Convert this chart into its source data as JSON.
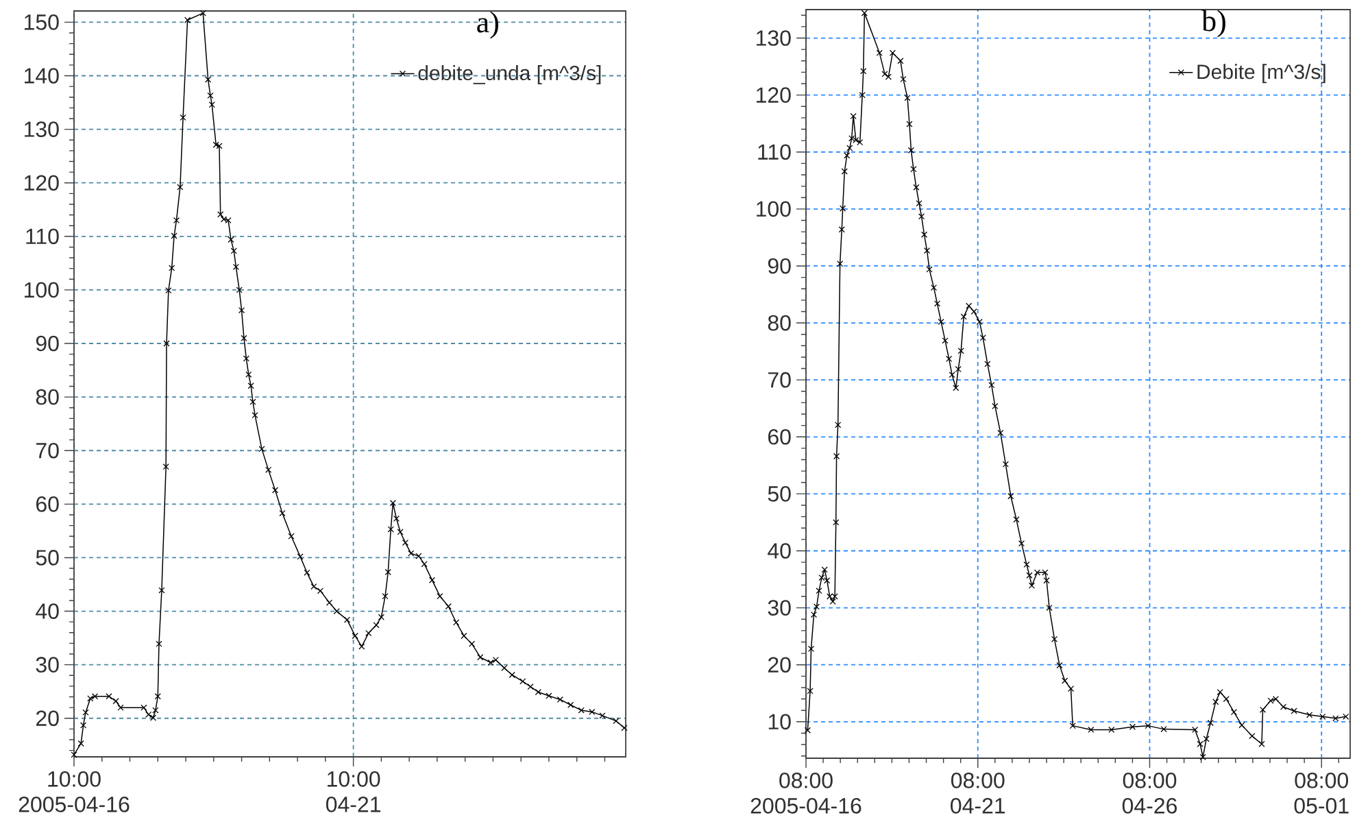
{
  "chart_data": [
    {
      "type": "line",
      "title": "a)",
      "x": [
        "2005-04-16T10:00",
        "2005-04-16T13:00",
        "2005-04-16T14:00",
        "2005-04-16T15:00",
        "2005-04-16T17:00",
        "2005-04-16T19:00",
        "2005-04-17T01:00",
        "2005-04-17T04:00",
        "2005-04-17T06:00",
        "2005-04-17T16:00",
        "2005-04-17T18:00",
        "2005-04-17T20:00",
        "2005-04-17T21:00",
        "2005-04-17T22:00",
        "2005-04-17T22:30",
        "2005-04-17T23:40",
        "2005-04-18T01:30",
        "2005-04-18T01:45",
        "2005-04-18T02:35",
        "2005-04-18T04:00",
        "2005-04-18T05:00",
        "2005-04-18T06:00",
        "2005-04-18T07:35",
        "2005-04-18T08:50",
        "2005-04-18T10:45",
        "2005-04-18T17:25",
        "2005-04-18T19:35",
        "2005-04-18T20:35",
        "2005-04-18T21:15",
        "2005-04-18T23:00",
        "2005-04-19T00:25",
        "2005-04-19T00:55",
        "2005-04-19T02:20",
        "2005-04-19T04:15",
        "2005-04-19T05:25",
        "2005-04-19T06:40",
        "2005-04-19T07:35",
        "2005-04-19T09:00",
        "2005-04-19T10:00",
        "2005-04-19T11:00",
        "2005-04-19T12:00",
        "2005-04-19T13:00",
        "2005-04-19T14:00",
        "2005-04-19T14:50",
        "2005-04-19T15:45",
        "2005-04-19T18:40",
        "2005-04-19T21:30",
        "2005-04-20T00:25",
        "2005-04-20T03:30",
        "2005-04-20T07:20",
        "2005-04-20T11:10",
        "2005-04-20T14:05",
        "2005-04-20T17:00",
        "2005-04-20T19:50",
        "2005-04-20T23:40",
        "2005-04-21T02:50",
        "2005-04-21T07:20",
        "2005-04-21T10:45",
        "2005-04-21T13:35",
        "2005-04-21T16:30",
        "2005-04-21T19:50",
        "2005-04-21T22:00",
        "2005-04-21T23:40",
        "2005-04-22T00:55",
        "2005-04-22T02:05",
        "2005-04-22T03:00",
        "2005-04-22T04:30",
        "2005-04-22T06:10",
        "2005-04-22T08:20",
        "2005-04-22T10:45",
        "2005-04-22T14:05",
        "2005-04-22T16:30",
        "2005-04-22T19:50",
        "2005-04-22T23:10",
        "2005-04-23T02:50",
        "2005-04-23T06:10",
        "2005-04-23T09:30",
        "2005-04-23T12:55",
        "2005-04-23T16:30",
        "2005-04-23T21:00",
        "2005-04-23T23:10",
        "2005-04-24T02:50",
        "2005-04-24T06:10",
        "2005-04-24T10:45",
        "2005-04-24T14:05",
        "2005-04-24T17:25",
        "2005-04-24T22:00",
        "2005-04-25T02:50",
        "2005-04-25T07:20",
        "2005-04-25T11:55",
        "2005-04-25T16:30",
        "2005-04-25T21:00",
        "2005-04-26T02:50",
        "2005-04-26T06:25"
      ],
      "series": [
        {
          "name": "debite_unda [m^3/s]",
          "color": "#000000",
          "values": [
            13.2,
            15.3,
            18.7,
            21.1,
            23.7,
            24.1,
            24.1,
            23.2,
            22.0,
            22.0,
            20.7,
            20.1,
            21.5,
            24.1,
            33.9,
            43.9,
            67.0,
            90.0,
            99.9,
            104.1,
            110.1,
            113.0,
            119.2,
            132.2,
            150.4,
            151.7,
            139.3,
            136.3,
            134.6,
            127.1,
            126.9,
            114.1,
            113.2,
            113.0,
            109.4,
            107.3,
            104.3,
            100.0,
            96.2,
            91.0,
            87.2,
            84.2,
            82.1,
            79.1,
            76.6,
            70.3,
            66.4,
            62.6,
            58.3,
            54.0,
            50.2,
            47.2,
            44.6,
            43.8,
            41.6,
            40.0,
            38.4,
            35.4,
            33.4,
            35.9,
            37.4,
            38.9,
            42.8,
            47.3,
            55.3,
            60.2,
            57.3,
            54.8,
            52.8,
            50.8,
            50.3,
            48.8,
            45.8,
            42.8,
            40.9,
            37.9,
            35.4,
            33.9,
            31.4,
            30.4,
            30.9,
            29.4,
            28.1,
            26.9,
            25.9,
            24.9,
            24.2,
            23.5,
            22.5,
            21.5,
            21.2,
            20.5,
            19.5,
            18.2
          ]
        }
      ],
      "xlim": [
        "2005-04-16T10:00",
        "2005-04-26T07:00"
      ],
      "ylim": [
        12.8,
        152.1
      ],
      "xticks": [
        {
          "value": "2005-04-16T10:00",
          "label": "10:00 2005-04-16"
        },
        {
          "value": "2005-04-16T22:00",
          "label": null
        },
        {
          "value": "2005-04-17T10:00",
          "label": null
        },
        {
          "value": "2005-04-17T22:00",
          "label": null
        },
        {
          "value": "2005-04-18T10:00",
          "label": null
        },
        {
          "value": "2005-04-18T22:00",
          "label": null
        },
        {
          "value": "2005-04-19T10:00",
          "label": null
        },
        {
          "value": "2005-04-19T22:00",
          "label": null
        },
        {
          "value": "2005-04-20T10:00",
          "label": null
        },
        {
          "value": "2005-04-20T22:00",
          "label": null
        },
        {
          "value": "2005-04-21T10:00",
          "label": "10:00 04-21"
        },
        {
          "value": "2005-04-21T22:00",
          "label": null
        },
        {
          "value": "2005-04-22T10:00",
          "label": null
        },
        {
          "value": "2005-04-22T22:00",
          "label": null
        },
        {
          "value": "2005-04-23T10:00",
          "label": null
        },
        {
          "value": "2005-04-23T22:00",
          "label": null
        },
        {
          "value": "2005-04-24T10:00",
          "label": null
        },
        {
          "value": "2005-04-24T22:00",
          "label": null
        },
        {
          "value": "2005-04-25T10:00",
          "label": null
        },
        {
          "value": "2005-04-25T22:00",
          "label": null
        }
      ],
      "yticks": [
        {
          "value": 14,
          "label": null
        },
        {
          "value": 16,
          "label": null
        },
        {
          "value": 18,
          "label": null
        },
        20,
        {
          "value": 22,
          "label": null
        },
        {
          "value": 24,
          "label": null
        },
        {
          "value": 26,
          "label": null
        },
        {
          "value": 28,
          "label": null
        },
        30,
        {
          "value": 32,
          "label": null
        },
        {
          "value": 34,
          "label": null
        },
        {
          "value": 36,
          "label": null
        },
        {
          "value": 38,
          "label": null
        },
        40,
        {
          "value": 42,
          "label": null
        },
        {
          "value": 44,
          "label": null
        },
        {
          "value": 46,
          "label": null
        },
        {
          "value": 48,
          "label": null
        },
        50,
        {
          "value": 52,
          "label": null
        },
        {
          "value": 54,
          "label": null
        },
        {
          "value": 56,
          "label": null
        },
        {
          "value": 58,
          "label": null
        },
        60,
        {
          "value": 62,
          "label": null
        },
        {
          "value": 64,
          "label": null
        },
        {
          "value": 66,
          "label": null
        },
        {
          "value": 68,
          "label": null
        },
        70,
        {
          "value": 72,
          "label": null
        },
        {
          "value": 74,
          "label": null
        },
        {
          "value": 76,
          "label": null
        },
        {
          "value": 78,
          "label": null
        },
        80,
        {
          "value": 82,
          "label": null
        },
        {
          "value": 84,
          "label": null
        },
        {
          "value": 86,
          "label": null
        },
        {
          "value": 88,
          "label": null
        },
        90,
        {
          "value": 92,
          "label": null
        },
        {
          "value": 94,
          "label": null
        },
        {
          "value": 96,
          "label": null
        },
        {
          "value": 98,
          "label": null
        },
        100,
        {
          "value": 102,
          "label": null
        },
        {
          "value": 104,
          "label": null
        },
        {
          "value": 106,
          "label": null
        },
        {
          "value": 108,
          "label": null
        },
        110,
        {
          "value": 112,
          "label": null
        },
        {
          "value": 114,
          "label": null
        },
        {
          "value": 116,
          "label": null
        },
        {
          "value": 118,
          "label": null
        },
        120,
        {
          "value": 122,
          "label": null
        },
        {
          "value": 124,
          "label": null
        },
        {
          "value": 126,
          "label": null
        },
        {
          "value": 128,
          "label": null
        },
        130,
        {
          "value": 132,
          "label": null
        },
        {
          "value": 134,
          "label": null
        },
        {
          "value": 136,
          "label": null
        },
        {
          "value": 138,
          "label": null
        },
        140,
        {
          "value": 142,
          "label": null
        },
        {
          "value": 144,
          "label": null
        },
        {
          "value": 146,
          "label": null
        },
        {
          "value": 148,
          "label": null
        },
        150
      ],
      "grid": true,
      "legend": "top right",
      "marker": "cross",
      "line_style": "solid"
    },
    {
      "type": "line",
      "title": "b)",
      "x": [
        "2005-04-16T09:10",
        "2005-04-16T10:55",
        "2005-04-16T11:35",
        "2005-04-16T13:30",
        "2005-04-16T15:25",
        "2005-04-16T17:05",
        "2005-04-16T19:00",
        "2005-04-16T21:00",
        "2005-04-16T22:40",
        "2005-04-17T00:35",
        "2005-04-17T02:45",
        "2005-04-17T04:10",
        "2005-04-17T04:55",
        "2005-04-17T05:20",
        "2005-04-17T06:20",
        "2005-04-17T07:45",
        "2005-04-17T09:00",
        "2005-04-17T09:40",
        "2005-04-17T10:55",
        "2005-04-17T12:35",
        "2005-04-17T14:30",
        "2005-04-17T15:55",
        "2005-04-17T17:05",
        "2005-04-17T18:50",
        "2005-04-17T21:40",
        "2005-04-17T23:20",
        "2005-04-18T00:05",
        "2005-04-18T00:50",
        "2005-04-18T11:20",
        "2005-04-18T15:00",
        "2005-04-18T17:35",
        "2005-04-18T20:30",
        "2005-04-19T02:00",
        "2005-04-19T03:55",
        "2005-04-19T06:50",
        "2005-04-19T08:15",
        "2005-04-19T09:25",
        "2005-04-19T11:05",
        "2005-04-19T13:00",
        "2005-04-19T15:00",
        "2005-04-19T16:40",
        "2005-04-19T18:35",
        "2005-04-19T20:30",
        "2005-04-19T22:10",
        "2005-04-20T01:15",
        "2005-04-20T03:40",
        "2005-04-20T06:20",
        "2005-04-20T09:10",
        "2005-04-20T11:50",
        "2005-04-20T14:00",
        "2005-04-20T16:40",
        "2005-04-20T18:20",
        "2005-04-20T20:15",
        "2005-04-20T22:10",
        "2005-04-21T01:45",
        "2005-04-21T05:20",
        "2005-04-21T09:10",
        "2005-04-21T11:35",
        "2005-04-21T14:45",
        "2005-04-21T17:35",
        "2005-04-21T20:00",
        "2005-04-21T23:50",
        "2005-04-22T03:25",
        "2005-04-22T07:00",
        "2005-04-22T10:55",
        "2005-04-22T14:30",
        "2005-04-22T18:05",
        "2005-04-22T20:00",
        "2005-04-22T21:40",
        "2005-04-23T01:30",
        "2005-04-23T07:00",
        "2005-04-23T08:00",
        "2005-04-23T09:55",
        "2005-04-23T13:30",
        "2005-04-23T17:05",
        "2005-04-23T20:45",
        "2005-04-24T01:00",
        "2005-04-24T02:15",
        "2005-04-24T15:00",
        "2005-04-25T05:20",
        "2005-04-25T20:00",
        "2005-04-26T06:50",
        "2005-04-26T17:50",
        "2005-04-27T15:40",
        "2005-04-27T19:15",
        "2005-04-27T21:10",
        "2005-04-27T23:35",
        "2005-04-28T02:30",
        "2005-04-28T06:05",
        "2005-04-28T09:10",
        "2005-04-28T13:30",
        "2005-04-28T18:50",
        "2005-04-29T00:20",
        "2005-04-29T07:30",
        "2005-04-29T14:15",
        "2005-04-29T15:00",
        "2005-04-29T20:30",
        "2005-04-30T00:05",
        "2005-04-30T05:20",
        "2005-04-30T12:50",
        "2005-04-30T23:35",
        "2005-05-01T08:45",
        "2005-05-01T17:50",
        "2005-05-02T01:00"
      ],
      "series": [
        {
          "name": "Debite [m^3/s]",
          "color": "#000000",
          "values": [
            8.5,
            15.4,
            22.8,
            28.8,
            30.2,
            33.0,
            35.3,
            36.7,
            34.8,
            32.0,
            31.1,
            32.0,
            45.0,
            56.6,
            62.1,
            90.4,
            96.4,
            100.1,
            106.6,
            109.4,
            110.7,
            112.4,
            116.3,
            112.1,
            111.7,
            120.0,
            124.2,
            134.4,
            127.4,
            123.7,
            123.2,
            127.4,
            126.0,
            122.8,
            119.5,
            114.9,
            110.3,
            107.0,
            103.8,
            101.0,
            98.7,
            95.5,
            92.7,
            89.4,
            86.2,
            83.4,
            80.2,
            76.9,
            73.7,
            70.9,
            68.6,
            71.9,
            75.1,
            81.1,
            83.0,
            82.0,
            80.2,
            77.4,
            72.8,
            69.1,
            65.4,
            60.7,
            55.2,
            49.6,
            45.5,
            41.3,
            37.6,
            35.7,
            33.9,
            36.2,
            36.2,
            34.8,
            30.0,
            24.5,
            19.9,
            17.2,
            15.8,
            9.3,
            8.6,
            8.6,
            9.1,
            9.3,
            8.7,
            8.6,
            6.1,
            3.8,
            7.0,
            9.8,
            13.5,
            15.2,
            14.0,
            11.7,
            9.4,
            7.5,
            6.1,
            12.1,
            13.7,
            14.0,
            12.6,
            11.9,
            11.2,
            10.9,
            10.6,
            10.9
          ]
        }
      ],
      "xlim": [
        "2005-04-16T08:00",
        "2005-05-02T04:00"
      ],
      "ylim": [
        3.6,
        135
      ],
      "xticks": [
        {
          "value": "2005-04-16T08:00",
          "label": "08:00 2005-04-16"
        },
        {
          "value": "2005-04-16T20:00",
          "label": null
        },
        {
          "value": "2005-04-17T08:00",
          "label": null
        },
        {
          "value": "2005-04-17T20:00",
          "label": null
        },
        {
          "value": "2005-04-18T08:00",
          "label": null
        },
        {
          "value": "2005-04-18T20:00",
          "label": null
        },
        {
          "value": "2005-04-19T08:00",
          "label": null
        },
        {
          "value": "2005-04-19T20:00",
          "label": null
        },
        {
          "value": "2005-04-20T08:00",
          "label": null
        },
        {
          "value": "2005-04-20T20:00",
          "label": null
        },
        {
          "value": "2005-04-21T08:00",
          "label": "08:00 04-21"
        },
        {
          "value": "2005-04-21T20:00",
          "label": null
        },
        {
          "value": "2005-04-22T08:00",
          "label": null
        },
        {
          "value": "2005-04-22T20:00",
          "label": null
        },
        {
          "value": "2005-04-23T08:00",
          "label": null
        },
        {
          "value": "2005-04-23T20:00",
          "label": null
        },
        {
          "value": "2005-04-24T08:00",
          "label": null
        },
        {
          "value": "2005-04-24T20:00",
          "label": null
        },
        {
          "value": "2005-04-25T08:00",
          "label": null
        },
        {
          "value": "2005-04-25T20:00",
          "label": null
        },
        {
          "value": "2005-04-26T08:00",
          "label": "08:00 04-26"
        },
        {
          "value": "2005-04-26T20:00",
          "label": null
        },
        {
          "value": "2005-04-27T08:00",
          "label": null
        },
        {
          "value": "2005-04-27T20:00",
          "label": null
        },
        {
          "value": "2005-04-28T08:00",
          "label": null
        },
        {
          "value": "2005-04-28T20:00",
          "label": null
        },
        {
          "value": "2005-04-29T08:00",
          "label": null
        },
        {
          "value": "2005-04-29T20:00",
          "label": null
        },
        {
          "value": "2005-04-30T08:00",
          "label": null
        },
        {
          "value": "2005-04-30T20:00",
          "label": null
        },
        {
          "value": "2005-05-01T08:00",
          "label": "08:00 05-01"
        },
        {
          "value": "2005-05-01T20:00",
          "label": null
        }
      ],
      "yticks": [
        {
          "value": 4,
          "label": null
        },
        {
          "value": 6,
          "label": null
        },
        {
          "value": 8,
          "label": null
        },
        10,
        {
          "value": 12,
          "label": null
        },
        {
          "value": 14,
          "label": null
        },
        {
          "value": 16,
          "label": null
        },
        {
          "value": 18,
          "label": null
        },
        20,
        {
          "value": 22,
          "label": null
        },
        {
          "value": 24,
          "label": null
        },
        {
          "value": 26,
          "label": null
        },
        {
          "value": 28,
          "label": null
        },
        30,
        {
          "value": 32,
          "label": null
        },
        {
          "value": 34,
          "label": null
        },
        {
          "value": 36,
          "label": null
        },
        {
          "value": 38,
          "label": null
        },
        40,
        {
          "value": 42,
          "label": null
        },
        {
          "value": 44,
          "label": null
        },
        {
          "value": 46,
          "label": null
        },
        {
          "value": 48,
          "label": null
        },
        50,
        {
          "value": 52,
          "label": null
        },
        {
          "value": 54,
          "label": null
        },
        {
          "value": 56,
          "label": null
        },
        {
          "value": 58,
          "label": null
        },
        60,
        {
          "value": 62,
          "label": null
        },
        {
          "value": 64,
          "label": null
        },
        {
          "value": 66,
          "label": null
        },
        {
          "value": 68,
          "label": null
        },
        70,
        {
          "value": 72,
          "label": null
        },
        {
          "value": 74,
          "label": null
        },
        {
          "value": 76,
          "label": null
        },
        {
          "value": 78,
          "label": null
        },
        80,
        {
          "value": 82,
          "label": null
        },
        {
          "value": 84,
          "label": null
        },
        {
          "value": 86,
          "label": null
        },
        {
          "value": 88,
          "label": null
        },
        90,
        {
          "value": 92,
          "label": null
        },
        {
          "value": 94,
          "label": null
        },
        {
          "value": 96,
          "label": null
        },
        {
          "value": 98,
          "label": null
        },
        100,
        {
          "value": 102,
          "label": null
        },
        {
          "value": 104,
          "label": null
        },
        {
          "value": 106,
          "label": null
        },
        {
          "value": 108,
          "label": null
        },
        110,
        {
          "value": 112,
          "label": null
        },
        {
          "value": 114,
          "label": null
        },
        {
          "value": 116,
          "label": null
        },
        {
          "value": 118,
          "label": null
        },
        120,
        {
          "value": 122,
          "label": null
        },
        {
          "value": 124,
          "label": null
        },
        {
          "value": 126,
          "label": null
        },
        {
          "value": 128,
          "label": null
        },
        130,
        {
          "value": 132,
          "label": null
        },
        {
          "value": 134,
          "label": null
        }
      ],
      "grid": true,
      "legend": "top right",
      "marker": "cross",
      "line_style": "solid"
    }
  ]
}
